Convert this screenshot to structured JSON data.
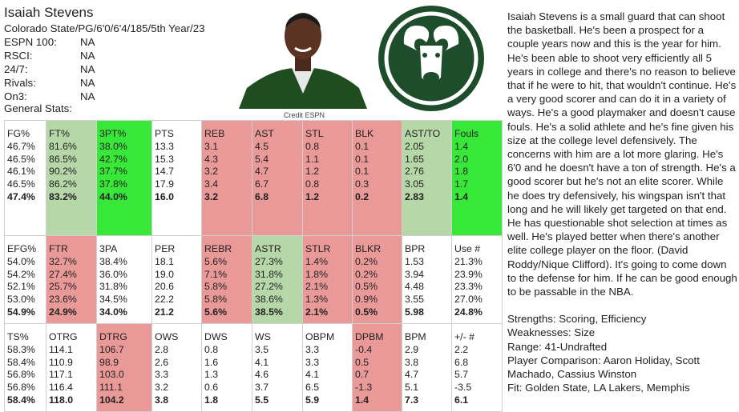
{
  "header": {
    "name": "Isaiah Stevens",
    "bio": "Colorado State/PG/6'0/6'4/185/5th Year/23"
  },
  "rankings": [
    {
      "label": "ESPN 100:",
      "value": "NA"
    },
    {
      "label": "RSCI:",
      "value": "NA"
    },
    {
      "label": "24/7:",
      "value": "NA"
    },
    {
      "label": "Rivals:",
      "value": "NA"
    },
    {
      "label": "On3:",
      "value": "NA"
    }
  ],
  "general_stats_label": "General Stats:",
  "photo_credit": "Credit ESPN",
  "stat_blocks": [
    {
      "columns": [
        {
          "header": "FG%",
          "values": [
            "46.7%",
            "46.5%",
            "46.1%",
            "46.5%"
          ],
          "total": "47.4%",
          "color": "#ffffff"
        },
        {
          "header": "FT%",
          "values": [
            "81.6%",
            "86.5%",
            "90.2%",
            "86.2%"
          ],
          "total": "83.2%",
          "color": "#b6d7a8"
        },
        {
          "header": "3PT%",
          "values": [
            "38.0%",
            "42.7%",
            "37.7%",
            "37.8%"
          ],
          "total": "44.0%",
          "color": "#38e838"
        },
        {
          "header": "PTS",
          "values": [
            "13.3",
            "15.3",
            "14.7",
            "17.9"
          ],
          "total": "16.0",
          "color": "#ffffff"
        },
        {
          "header": "REB",
          "values": [
            "3.1",
            "4.3",
            "3.2",
            "3.4"
          ],
          "total": "3.2",
          "color": "#ea9999"
        },
        {
          "header": "AST",
          "values": [
            "4.5",
            "5.4",
            "4.7",
            "6.7"
          ],
          "total": "6.8",
          "color": "#ea9999"
        },
        {
          "header": "STL",
          "values": [
            "0.8",
            "1.1",
            "1.2",
            "0.8"
          ],
          "total": "1.2",
          "color": "#ea9999"
        },
        {
          "header": "BLK",
          "values": [
            "0.1",
            "0.1",
            "0.1",
            "0.3"
          ],
          "total": "0.2",
          "color": "#ea9999"
        },
        {
          "header": "AST/TO",
          "values": [
            "2.05",
            "1.65",
            "2.76",
            "3.05"
          ],
          "total": "2.83",
          "color": "#b6d7a8"
        },
        {
          "header": "Fouls",
          "values": [
            "1.4",
            "2.0",
            "1.8",
            "1.7"
          ],
          "total": "1.4",
          "color": "#38e838"
        }
      ]
    },
    {
      "columns": [
        {
          "header": "EFG%",
          "values": [
            "54.0%",
            "54.2%",
            "52.1%",
            "53.0%"
          ],
          "total": "54.9%",
          "color": "#ffffff"
        },
        {
          "header": "FTR",
          "values": [
            "32.7%",
            "27.4%",
            "25.7%",
            "23.6%"
          ],
          "total": "24.9%",
          "color": "#ea9999"
        },
        {
          "header": "3PA",
          "values": [
            "38.4%",
            "36.0%",
            "31.8%",
            "34.5%"
          ],
          "total": "34.0%",
          "color": "#ffffff"
        },
        {
          "header": "PER",
          "values": [
            "18.1",
            "19.0",
            "20.6",
            "22.2"
          ],
          "total": "21.2",
          "color": "#ffffff"
        },
        {
          "header": "REBR",
          "values": [
            "5.6%",
            "7.1%",
            "5.8%",
            "5.8%"
          ],
          "total": "5.6%",
          "color": "#ea9999"
        },
        {
          "header": "ASTR",
          "values": [
            "27.3%",
            "31.8%",
            "27.2%",
            "38.6%"
          ],
          "total": "38.5%",
          "color": "#b6d7a8"
        },
        {
          "header": "STLR",
          "values": [
            "1.4%",
            "1.8%",
            "2.1%",
            "1.3%"
          ],
          "total": "2.1%",
          "color": "#ea9999"
        },
        {
          "header": "BLKR",
          "values": [
            "0.2%",
            "0.2%",
            "0.5%",
            "0.9%"
          ],
          "total": "0.5%",
          "color": "#ea9999"
        },
        {
          "header": "BPR",
          "values": [
            "1.53",
            "3.94",
            "4.48",
            "3.55"
          ],
          "total": "5.98",
          "color": "#ffffff"
        },
        {
          "header": "Use #",
          "values": [
            "21.3%",
            "23.9%",
            "23.3%",
            "27.0%"
          ],
          "total": "24.8%",
          "color": "#ffffff"
        }
      ]
    },
    {
      "columns": [
        {
          "header": "TS%",
          "values": [
            "58.3%",
            "58.4%",
            "56.8%",
            "56.8%"
          ],
          "total": "58.4%",
          "color": "#ffffff"
        },
        {
          "header": "OTRG",
          "values": [
            "114.1",
            "110.9",
            "117.1",
            "116.4"
          ],
          "total": "118.0",
          "color": "#ffffff"
        },
        {
          "header": "DTRG",
          "values": [
            "106.7",
            "98.9",
            "103.0",
            "111.1"
          ],
          "total": "104.2",
          "color": "#ea9999"
        },
        {
          "header": "OWS",
          "values": [
            "2.8",
            "2.6",
            "3.3",
            "3.2"
          ],
          "total": "3.8",
          "color": "#ffffff"
        },
        {
          "header": "DWS",
          "values": [
            "0.8",
            "1.6",
            "1.3",
            "0.6"
          ],
          "total": "1.8",
          "color": "#ffffff"
        },
        {
          "header": "WS",
          "values": [
            "3.5",
            "4.1",
            "4.6",
            "3.7"
          ],
          "total": "5.5",
          "color": "#ffffff"
        },
        {
          "header": "OBPM",
          "values": [
            "3.3",
            "3.3",
            "4.1",
            "6.5"
          ],
          "total": "5.9",
          "color": "#ffffff"
        },
        {
          "header": "DPBM",
          "values": [
            "-0.4",
            "0.5",
            "0.7",
            "-1.3"
          ],
          "total": "1.4",
          "color": "#ea9999"
        },
        {
          "header": "BPM",
          "values": [
            "2.9",
            "3.8",
            "4.7",
            "5.1"
          ],
          "total": "7.3",
          "color": "#ffffff"
        },
        {
          "header": "+/- #",
          "values": [
            "2.2",
            "6.8",
            "5.7",
            "-3.5"
          ],
          "total": "6.1",
          "color": "#ffffff"
        }
      ]
    }
  ],
  "report": {
    "paragraph": "Isaiah Stevens is a small guard that can shoot the basketball. He's been a prospect for a couple years now and this is the year for him. He's been able to shoot very efficiently all 5 years in college and there's no reason to believe that if he were to hit, that wouldn't continue. He's a very good scorer and can do it in a variety of ways. He's a good playmaker and doesn't cause fouls. He's a solid athlete and he's fine given his size at the college level defensively. The concerns with him are a lot more glaring. He's 6'0 and he doesn't have a ton of strength. He's a good scorer but he's not an elite scorer. While he does try defensively, his wingspan isn't that long and he will likely get targeted on that end. He has questionable shot selection at times as well. He's played better when there's another elite college player on the floor. (David Roddy/Nique Clifford). It's going to come down to the defense for him. If he can be good enough to be passable in the NBA.",
    "profile": [
      "Strengths: Scoring, Efficiency",
      "Weaknesses: Size",
      "Range: 41-Undrafted",
      "Player Comparison: Aaron Holiday, Scott Machado, Cassius Winston",
      "Fit: Golden State, LA Lakers, Memphis"
    ]
  }
}
